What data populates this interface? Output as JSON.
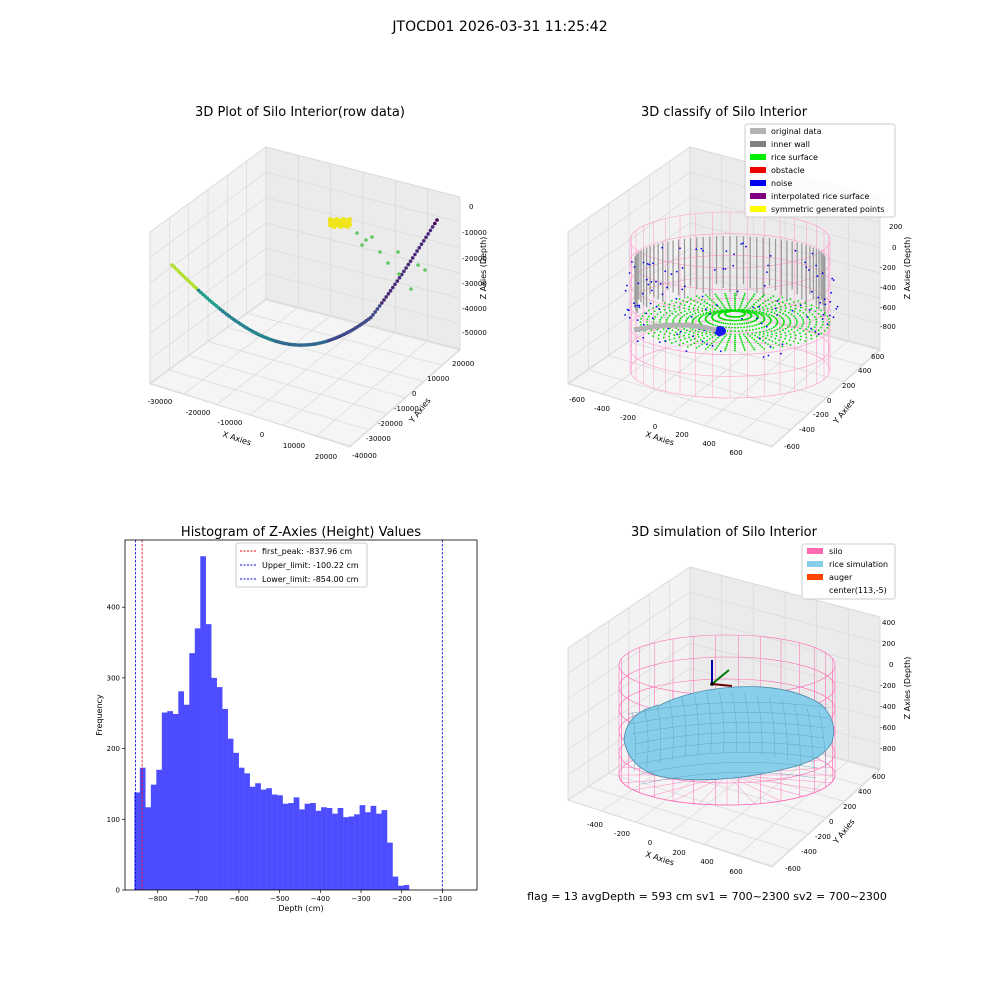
{
  "suptitle": "JTOCD01 2026-03-31 11:25:42",
  "status_line": "flag = 13   avgDepth = 593 cm  sv1 = 700~2300  sv2 = 700~2300",
  "chart_data": [
    {
      "type": "scatter",
      "title": "3D Plot of Silo Interior(row data)",
      "xlabel": "X Axies",
      "ylabel": "Y Axies",
      "zlabel": "Z Axies (Depth)",
      "xticks": [
        "-30000",
        "-20000",
        "-10000",
        "0",
        "10000",
        "20000"
      ],
      "yticks": [
        "20000",
        "10000",
        "0",
        "-10000",
        "-20000",
        "-30000",
        "-40000"
      ],
      "zticks": [
        "0",
        "-10000",
        "-20000",
        "-30000",
        "-40000",
        "-50000"
      ],
      "colormap": "viridis",
      "highlight_color": "#f0e41a"
    },
    {
      "type": "scatter",
      "title": "3D classify of Silo Interior",
      "xlabel": "X Axies",
      "ylabel": "Y Axies",
      "zlabel": "Z Axies (Depth)",
      "xticks": [
        "-600",
        "-400",
        "-200",
        "0",
        "200",
        "400",
        "600"
      ],
      "yticks": [
        "600",
        "400",
        "200",
        "0",
        "-200",
        "-400",
        "-600"
      ],
      "zticks": [
        "200",
        "0",
        "-200",
        "-400",
        "-600",
        "-800"
      ],
      "legend_position": "top-right",
      "legend": [
        {
          "label": "original data",
          "color": "#b3b3b3"
        },
        {
          "label": "inner wall",
          "color": "#808080"
        },
        {
          "label": "rice surface",
          "color": "#00ee00"
        },
        {
          "label": "obstacle",
          "color": "#ee0000"
        },
        {
          "label": "noise",
          "color": "#0000ee"
        },
        {
          "label": "interpolated rice surface",
          "color": "#800080"
        },
        {
          "label": "symmetric generated points",
          "color": "#ffff00"
        }
      ]
    },
    {
      "type": "bar",
      "title": "Histogram of Z-Axies (Height) Values",
      "xlabel": "Depth (cm)",
      "ylabel": "Frequency",
      "xlim": [
        -880,
        -15
      ],
      "ylim": [
        0,
        495
      ],
      "xticks": [
        -800,
        -700,
        -600,
        -500,
        -400,
        -300,
        -200,
        -100
      ],
      "xtick_labels": [
        "−800",
        "−700",
        "−600",
        "−500",
        "−400",
        "−300",
        "−200",
        "−100"
      ],
      "yticks": [
        0,
        100,
        200,
        300,
        400
      ],
      "bar_color": "#4d4dff",
      "bin_start": -857,
      "bin_width": 13.5,
      "values": [
        138,
        173,
        117,
        149,
        170,
        251,
        253,
        249,
        281,
        262,
        335,
        370,
        472,
        376,
        300,
        287,
        256,
        214,
        194,
        173,
        165,
        146,
        151,
        142,
        144,
        135,
        134,
        122,
        123,
        131,
        114,
        122,
        123,
        112,
        117,
        116,
        108,
        116,
        103,
        104,
        107,
        120,
        110,
        119,
        108,
        113,
        67,
        19,
        6,
        7
      ],
      "legend_position": "top-center",
      "lines": [
        {
          "label": "first_peak: -837.96 cm",
          "x": -837.96,
          "color": "#ee0000"
        },
        {
          "label": "Upper_limit: -100.22 cm",
          "x": -100.22,
          "color": "#0000cc"
        },
        {
          "label": "Lower_limit: -854.00 cm",
          "x": -854.0,
          "color": "#0000cc"
        }
      ]
    },
    {
      "type": "area",
      "title": "3D simulation of Silo Interior",
      "xlabel": "X Axies",
      "ylabel": "Y Axies",
      "zlabel": "Z Axies (Depth)",
      "xticks": [
        "-400",
        "-200",
        "0",
        "200",
        "400",
        "600"
      ],
      "yticks": [
        "600",
        "400",
        "200",
        "0",
        "-200",
        "-400",
        "-600"
      ],
      "zticks": [
        "400",
        "200",
        "0",
        "-200",
        "-400",
        "-600",
        "-800"
      ],
      "legend_position": "top-right",
      "legend": [
        {
          "label": "silo",
          "color": "#ff69b4"
        },
        {
          "label": "rice simulation",
          "color": "#87ceeb"
        },
        {
          "label": "auger",
          "color": "#ff4500"
        },
        {
          "label": "center(113,-5)",
          "color": "none"
        }
      ]
    }
  ]
}
